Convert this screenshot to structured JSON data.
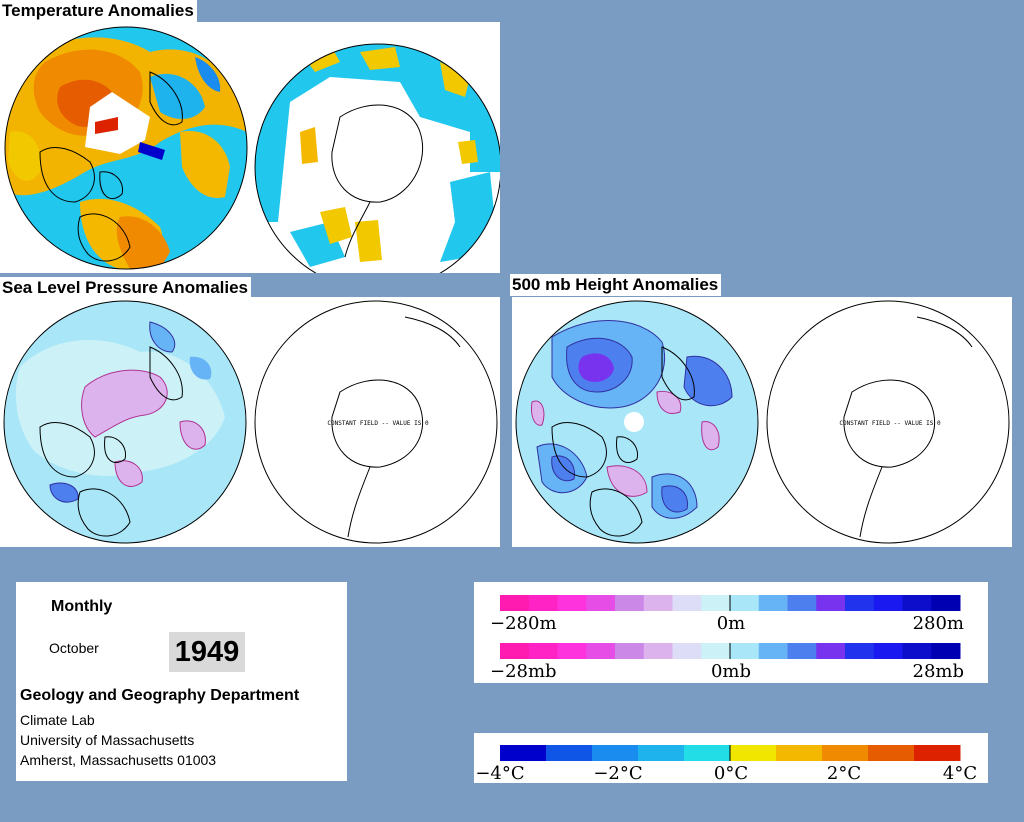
{
  "titles": {
    "temperature": "Temperature Anomalies",
    "slp": "Sea Level Pressure Anomalies",
    "height500": "500 mb Height Anomalies"
  },
  "constant_field_note": "CONSTANT FIELD -- VALUE IS 0",
  "info": {
    "period": "Monthly",
    "month": "October",
    "year": "1949",
    "department": "Geology and Geography Department",
    "lab": "Climate Lab",
    "university": "University of Massachusetts",
    "address": "Amherst, Massachusetts 01003"
  },
  "legends": {
    "height": {
      "labels": [
        "−280m",
        "0m",
        "280m"
      ]
    },
    "pressure": {
      "labels": [
        "−28mb",
        "0mb",
        "28mb"
      ]
    },
    "temperature": {
      "labels": [
        "−4°C",
        "−2°C",
        "0°C",
        "2°C",
        "4°C"
      ]
    }
  },
  "colors": {
    "background": "#7b9cc2",
    "anomaly_scale": [
      "#ff1ab0",
      "#ff22c4",
      "#ff33dd",
      "#e64de6",
      "#cc88e6",
      "#ddb3ee",
      "#ddddf8",
      "#ccf2f8",
      "#a8e6f8",
      "#66b3f5",
      "#4d80ee",
      "#7733ee",
      "#2233ee",
      "#1a1af0",
      "#0d0dcc",
      "#0000b3"
    ],
    "temperature_scale": [
      "#0000cc",
      "#0f55e6",
      "#1a8cf0",
      "#1fb3ee",
      "#22dde6",
      "#f0e600",
      "#f5b800",
      "#f08a00",
      "#e65c00",
      "#dd2200"
    ]
  }
}
